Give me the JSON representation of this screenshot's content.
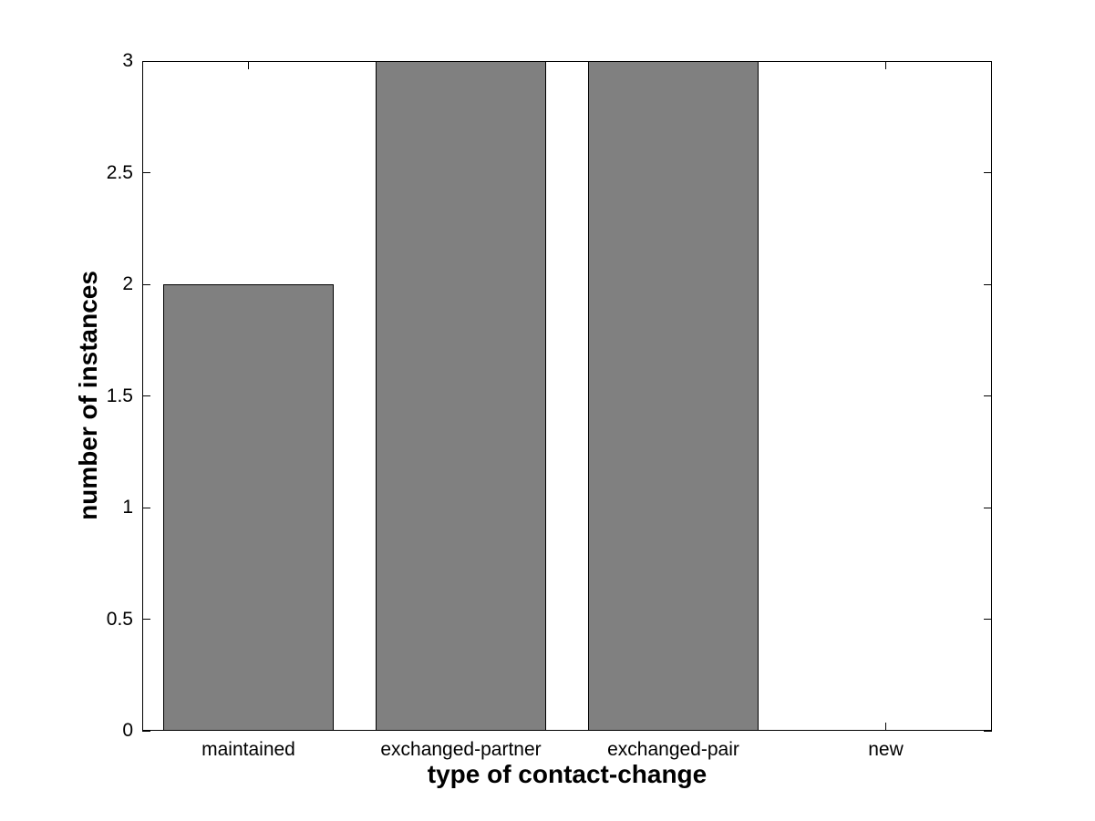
{
  "chart_data": {
    "type": "bar",
    "title": "",
    "xlabel": "type of contact-change",
    "ylabel": "number of instances",
    "categories": [
      "maintained",
      "exchanged-partner",
      "exchanged-pair",
      "new"
    ],
    "values": [
      2,
      3,
      3,
      0
    ],
    "ylim": [
      0,
      3
    ],
    "yticks": [
      "0",
      "0.5",
      "1",
      "1.5",
      "2",
      "2.5",
      "3"
    ],
    "bar_width_fraction": 0.8,
    "bar_color": "#808080",
    "bar_edge_color": "#000000",
    "axis_color": "#000000",
    "background_color": "#ffffff",
    "grid": false,
    "legend": "none",
    "tick_direction": "in",
    "box": true
  }
}
